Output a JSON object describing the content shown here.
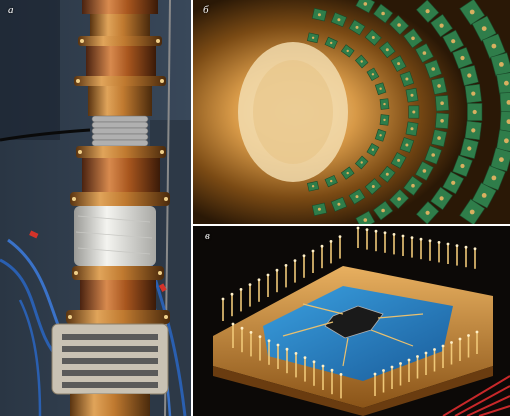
{
  "panels": {
    "a": {
      "label": "а"
    },
    "b": {
      "label": "б"
    },
    "c": {
      "label": "в"
    }
  },
  "colors": {
    "gold": "#c8893a",
    "copper": "#b8642a",
    "pcb_green": "#2f7d4a",
    "chip_blue": "#2a86c8",
    "cable_blue": "#2a5fb0",
    "wrap_white": "#e6e6e2"
  }
}
